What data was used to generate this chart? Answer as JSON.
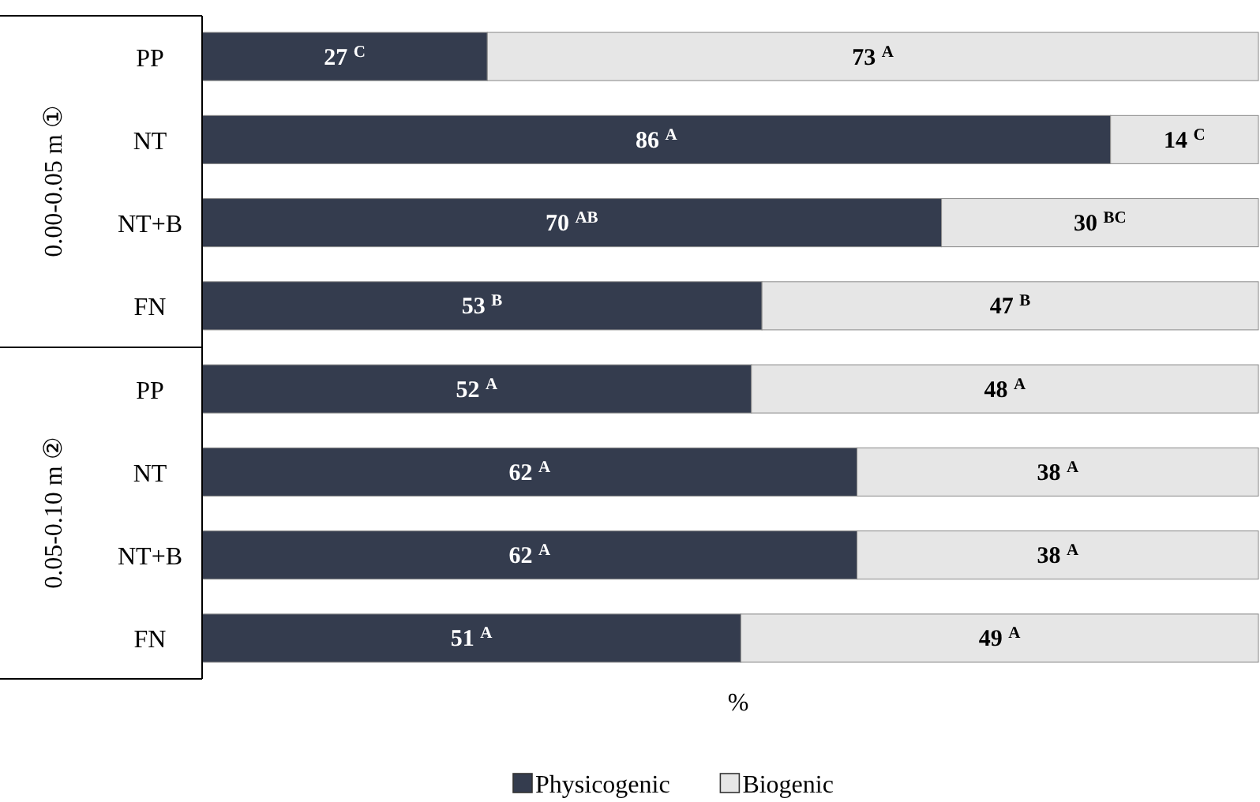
{
  "chart_data": {
    "type": "bar",
    "orientation": "horizontal",
    "stacked": true,
    "xlabel": "%",
    "legend": "bottom",
    "categories": [
      "PP",
      "NT",
      "NT+B",
      "FN",
      "PP",
      "NT",
      "NT+B",
      "FN"
    ],
    "annotations": [
      "0.00-0.05 m ①",
      "0.05-0.10 m ②"
    ],
    "series": [
      {
        "name": "Physicogenic",
        "color": "#343c4e",
        "values": [
          27,
          86,
          70,
          53,
          52,
          62,
          62,
          51
        ],
        "value_labels": [
          "27 $^{C}$",
          "86 $^{A}$",
          "70 $^{AB}$",
          "53 $^{B}$",
          "52 $^{A}$",
          "62 $^{A}$",
          "62 $^{A}$",
          "51 $^{A}$"
        ]
      },
      {
        "name": "Biogenic",
        "color": "#e6e6e6",
        "values": [
          73,
          14,
          30,
          47,
          48,
          38,
          38,
          49
        ],
        "value_labels": [
          "73 $^{A}$",
          "14 $^{C}$",
          "30 $^{BC}$",
          "47 $^{B}$",
          "48 $^{A}$",
          "38 $^{A}$",
          "38 $^{A}$",
          "49 $^{A}$"
        ]
      }
    ]
  }
}
